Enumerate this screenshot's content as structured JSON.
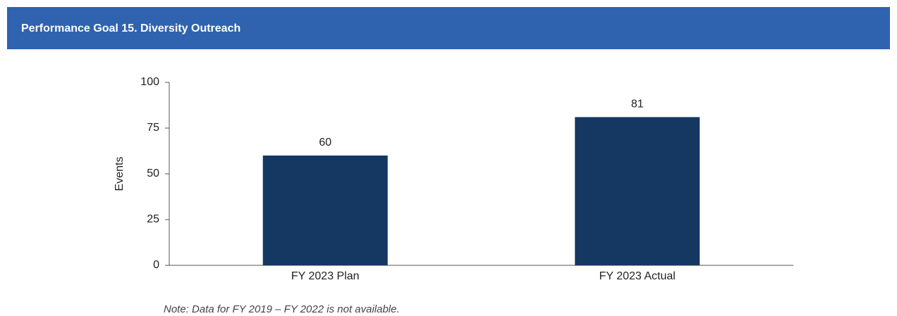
{
  "chart_data": {
    "type": "bar",
    "title": "Performance Goal 15. Diversity Outreach",
    "ylabel": "Events",
    "note": "Note: Data for FY 2019 – FY 2022 is not available.",
    "categories": [
      "FY 2023 Plan",
      "FY 2023 Actual"
    ],
    "values": [
      60,
      81
    ],
    "color": "#143862",
    "ylim": [
      0,
      100
    ],
    "yticks": [
      0,
      25,
      50,
      75,
      100
    ],
    "grid": false
  }
}
